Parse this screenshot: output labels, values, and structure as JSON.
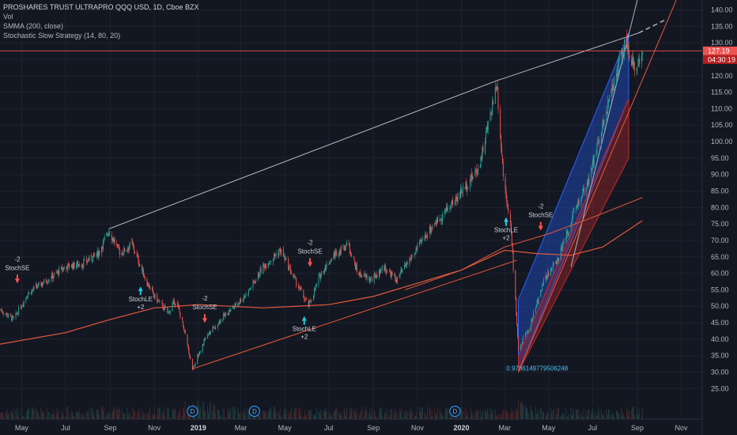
{
  "legend": {
    "title": "PROSHARES TRUST ULTRAPRO QQQ USD, 1D, Cboe BZX",
    "vol": "Vol",
    "smma": "SMMA (200, close)",
    "strategy": "Stochastic Slow Strategy (14, 80, 20)"
  },
  "price_tags": {
    "last_price": "127.19",
    "countdown": "04:30:19"
  },
  "colors": {
    "background": "#131722",
    "up": "#26a69a",
    "down": "#ef5350",
    "smma": "#e55a3c",
    "trendline": "#b2b5be",
    "channel_blue": "#2962ff",
    "channel_red": "#c62828",
    "signal_up": "#26c6da",
    "signal_down": "#ff5252",
    "dividend": "#2196f3"
  },
  "chart_data": {
    "type": "candlestick",
    "x_ticks": [
      "May",
      "Jul",
      "Sep",
      "Nov",
      "2019",
      "Mar",
      "May",
      "Jul",
      "Sep",
      "Nov",
      "2020",
      "Mar",
      "May",
      "Jul",
      "Sep",
      "Nov"
    ],
    "y_ticks": [
      25,
      30,
      35,
      40,
      45,
      50,
      55,
      60,
      65,
      70,
      75,
      80,
      85,
      90,
      95,
      100,
      105,
      110,
      115,
      120,
      125,
      130,
      135,
      140
    ],
    "y_tick_labels": [
      "25.00",
      "30.00",
      "35.00",
      "40.00",
      "45.00",
      "50.00",
      "55.00",
      "60.00",
      "65.00",
      "70.00",
      "75.00",
      "80.00",
      "85.00",
      "90.00",
      "95.00",
      "100.00",
      "105.00",
      "110.00",
      "115.00",
      "120.00",
      "125.00",
      "130.00",
      "135.00",
      "140.00"
    ],
    "ylim": [
      21,
      143
    ],
    "x_range": [
      "2018-04-01",
      "2020-11-30"
    ],
    "price_path": [
      [
        "2018-04-01",
        49
      ],
      [
        "2018-04-20",
        46
      ],
      [
        "2018-05-10",
        54
      ],
      [
        "2018-06-05",
        58
      ],
      [
        "2018-07-01",
        62
      ],
      [
        "2018-07-25",
        63
      ],
      [
        "2018-08-15",
        66
      ],
      [
        "2018-08-30",
        73
      ],
      [
        "2018-09-15",
        66
      ],
      [
        "2018-10-01",
        69
      ],
      [
        "2018-10-20",
        58
      ],
      [
        "2018-11-01",
        53
      ],
      [
        "2018-11-20",
        48
      ],
      [
        "2018-12-01",
        52
      ],
      [
        "2018-12-10",
        45
      ],
      [
        "2018-12-24",
        31
      ],
      [
        "2019-01-10",
        40
      ],
      [
        "2019-02-01",
        46
      ],
      [
        "2019-02-20",
        50
      ],
      [
        "2019-03-10",
        54
      ],
      [
        "2019-04-01",
        62
      ],
      [
        "2019-04-25",
        67
      ],
      [
        "2019-05-15",
        58
      ],
      [
        "2019-06-03",
        50
      ],
      [
        "2019-06-20",
        60
      ],
      [
        "2019-07-10",
        66
      ],
      [
        "2019-07-28",
        69
      ],
      [
        "2019-08-10",
        60
      ],
      [
        "2019-08-30",
        58
      ],
      [
        "2019-09-15",
        62
      ],
      [
        "2019-10-03",
        58
      ],
      [
        "2019-10-30",
        67
      ],
      [
        "2019-11-20",
        74
      ],
      [
        "2019-12-15",
        80
      ],
      [
        "2020-01-05",
        86
      ],
      [
        "2020-01-25",
        92
      ],
      [
        "2020-02-10",
        108
      ],
      [
        "2020-02-19",
        118
      ],
      [
        "2020-02-28",
        90
      ],
      [
        "2020-03-09",
        75
      ],
      [
        "2020-03-16",
        52
      ],
      [
        "2020-03-20",
        37
      ],
      [
        "2020-04-05",
        44
      ],
      [
        "2020-04-25",
        58
      ],
      [
        "2020-05-15",
        65
      ],
      [
        "2020-06-08",
        80
      ],
      [
        "2020-06-25",
        88
      ],
      [
        "2020-07-15",
        105
      ],
      [
        "2020-07-30",
        118
      ],
      [
        "2020-08-15",
        130
      ],
      [
        "2020-08-28",
        122
      ],
      [
        "2020-09-03",
        125
      ],
      [
        "2020-09-08",
        127.19
      ]
    ],
    "smma_path": [
      [
        "2018-04-01",
        38.5
      ],
      [
        "2018-07-01",
        42
      ],
      [
        "2018-09-01",
        46
      ],
      [
        "2018-11-01",
        49.5
      ],
      [
        "2019-01-01",
        50.5
      ],
      [
        "2019-04-01",
        49.5
      ],
      [
        "2019-07-01",
        50.5
      ],
      [
        "2019-09-01",
        53
      ],
      [
        "2019-11-01",
        57
      ],
      [
        "2020-01-01",
        61
      ],
      [
        "2020-03-01",
        67
      ],
      [
        "2020-04-15",
        66
      ],
      [
        "2020-06-01",
        65.5
      ],
      [
        "2020-07-15",
        68
      ],
      [
        "2020-09-08",
        76
      ]
    ],
    "second_ma_path": [
      [
        "2019-10-15",
        55
      ],
      [
        "2020-01-01",
        61
      ],
      [
        "2020-03-01",
        68
      ],
      [
        "2020-05-01",
        72
      ],
      [
        "2020-07-01",
        77
      ],
      [
        "2020-09-08",
        83
      ]
    ],
    "trendlines": [
      {
        "from": [
          "2018-08-30",
          73.5
        ],
        "to": [
          "2020-02-19",
          118.5
        ],
        "color": "trendline"
      },
      {
        "from": [
          "2020-02-19",
          118.5
        ],
        "to": [
          "2020-09-03",
          133
        ],
        "color": "trendline"
      },
      {
        "from": [
          "2020-09-03",
          133
        ],
        "to": [
          "2020-10-10",
          137
        ],
        "color": "trendline",
        "dashed": true
      },
      {
        "from": [
          "2020-06-01",
          62
        ],
        "to": [
          "2020-09-01",
          143
        ],
        "color": "trendline"
      },
      {
        "from": [
          "2018-12-24",
          31
        ],
        "to": [
          "2020-03-18",
          64
        ],
        "color": "smma"
      },
      {
        "from": [
          "2020-03-20",
          30
        ],
        "to": [
          "2020-10-25",
          143
        ],
        "color": "smma"
      }
    ],
    "channel": {
      "blue": [
        [
          "2020-03-20",
          30
        ],
        [
          "2020-08-20",
          113
        ],
        [
          "2020-08-20",
          133
        ],
        [
          "2020-03-20",
          52
        ]
      ],
      "red": [
        [
          "2020-03-20",
          30
        ],
        [
          "2020-08-20",
          95
        ],
        [
          "2020-08-20",
          113
        ],
        [
          "2020-03-20",
          35
        ]
      ]
    },
    "channel_label": "r1: 0.9786149779506248",
    "channel_label_value": "0.9786149779506248",
    "channel_label_pos": [
      "2020-04-15",
      30.5
    ],
    "signals": [
      {
        "date": "2018-04-25",
        "price": 56,
        "direction": "down",
        "label": "StochSE",
        "qty": "-2"
      },
      {
        "date": "2018-10-13",
        "price": 57,
        "direction": "up",
        "label": "StochLE",
        "qty": "+2"
      },
      {
        "date": "2019-01-10",
        "price": 44,
        "direction": "down",
        "label": "StochSE",
        "qty": "-2"
      },
      {
        "date": "2019-05-28",
        "price": 48,
        "direction": "up",
        "label": "StochLE",
        "qty": "+2"
      },
      {
        "date": "2019-06-05",
        "price": 61,
        "direction": "down",
        "label": "StochSE",
        "qty": "-2"
      },
      {
        "date": "2020-03-03",
        "price": 78,
        "direction": "up",
        "label": "StochLE",
        "qty": "+2"
      },
      {
        "date": "2020-04-20",
        "price": 72,
        "direction": "down",
        "label": "StochSE",
        "qty": "-2"
      }
    ],
    "dividends": [
      "2018-12-24",
      "2019-03-20",
      "2019-12-23"
    ],
    "dividend_label": "D",
    "last_price": 127.19
  }
}
